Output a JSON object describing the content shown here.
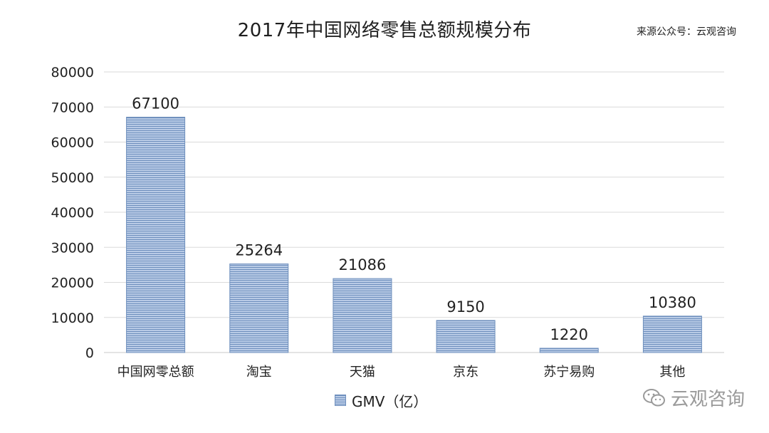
{
  "chart_data": {
    "type": "bar",
    "title": "2017年中国网络零售总额规模分布",
    "source": "来源公众号：云观咨询",
    "categories": [
      "中国网零总额",
      "淘宝",
      "天猫",
      "京东",
      "苏宁易购",
      "其他"
    ],
    "series": [
      {
        "name": "GMV（亿）",
        "values": [
          67100,
          25264,
          21086,
          9150,
          1220,
          10380
        ]
      }
    ],
    "y_ticks": [
      "0",
      "10000",
      "20000",
      "30000",
      "40000",
      "50000",
      "60000",
      "70000",
      "80000"
    ],
    "ylim": [
      0,
      80000
    ],
    "grid": true,
    "legend_position": "bottom",
    "bar_color": "#8fa9cf",
    "bar_stripe_color": "#6e8fbd"
  },
  "watermark": {
    "text": "云观咨询",
    "icon": "wechat-icon"
  }
}
